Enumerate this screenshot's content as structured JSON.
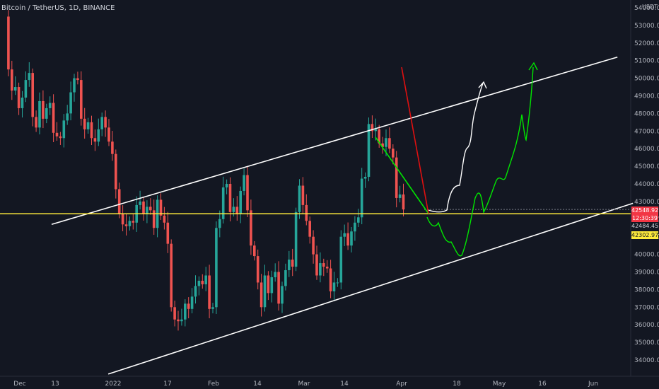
{
  "header": {
    "title": "Bitcoin / TetherUS, 1D, BINANCE",
    "currency": "USDT"
  },
  "price_tags": [
    {
      "label": "42548.92",
      "bg": "#f23645",
      "fg": "#ffffff"
    },
    {
      "label": "12:30:39",
      "bg": "#f23645",
      "fg": "#ffffff"
    },
    {
      "label": "42484.45",
      "bg": "#131722",
      "fg": "#d1d4dc"
    },
    {
      "label": "42302.97",
      "bg": "#ffeb3b",
      "fg": "#131722"
    }
  ],
  "colors": {
    "up": "#26a69a",
    "down": "#ef5350",
    "horizontal_level": "#ffeb3b",
    "channel": "#ffffff",
    "projection_green": "#00e600",
    "projection_white": "#ffffff"
  },
  "chart_data": {
    "type": "candlestick",
    "title": "Bitcoin / TetherUS, 1D, BINANCE",
    "ylim": [
      33500,
      54500
    ],
    "x_ticks": [
      "Dec",
      "13",
      "2022",
      "17",
      "Feb",
      "14",
      "Mar",
      "14",
      "Apr",
      "18",
      "May",
      "16",
      "Jun"
    ],
    "y_ticks": [
      34000,
      35000,
      36000,
      37000,
      38000,
      39000,
      40000,
      41000,
      42000,
      43000,
      44000,
      45000,
      46000,
      47000,
      48000,
      49000,
      50000,
      51000,
      52000,
      53000,
      54000
    ],
    "closes": [
      53500,
      50500,
      49300,
      49500,
      48300,
      48900,
      49900,
      50300,
      47800,
      47200,
      48700,
      47700,
      48300,
      48600,
      46900,
      46700,
      46600,
      47600,
      48000,
      49200,
      50000,
      49900,
      47700,
      47100,
      47500,
      46600,
      46400,
      47100,
      47800,
      47200,
      46400,
      45700,
      43700,
      42300,
      41700,
      41600,
      41900,
      41800,
      42800,
      43000,
      42300,
      42700,
      42500,
      41500,
      43100,
      42200,
      41800,
      40600,
      37000,
      36300,
      36200,
      36300,
      37200,
      36900,
      37600,
      38200,
      38500,
      38300,
      38800,
      36900,
      37000,
      41500,
      42000,
      43800,
      44000,
      42400,
      42700,
      42300,
      43600,
      44500,
      42500,
      40500,
      39900,
      38400,
      37000,
      38800,
      37800,
      38700,
      39000,
      37200,
      38200,
      39100,
      39700,
      39300,
      42400,
      43900,
      42800,
      41900,
      41000,
      40000,
      38800,
      39500,
      39300,
      39200,
      37900,
      38400,
      38400,
      41000,
      41200,
      40500,
      41300,
      41800,
      42100,
      44300,
      44400,
      47400,
      47000,
      47100,
      46300,
      46100,
      46600,
      46000,
      45500,
      43200,
      43400,
      42548
    ],
    "channel_upper": [
      [
        0,
        41700
      ],
      [
        138,
        51200
      ]
    ],
    "channel_lower": [
      [
        9,
        33200
      ],
      [
        138,
        42900
      ]
    ],
    "horizontal_level": 42302.97,
    "last_price": 42548.92,
    "countdown": "12:30:39"
  }
}
